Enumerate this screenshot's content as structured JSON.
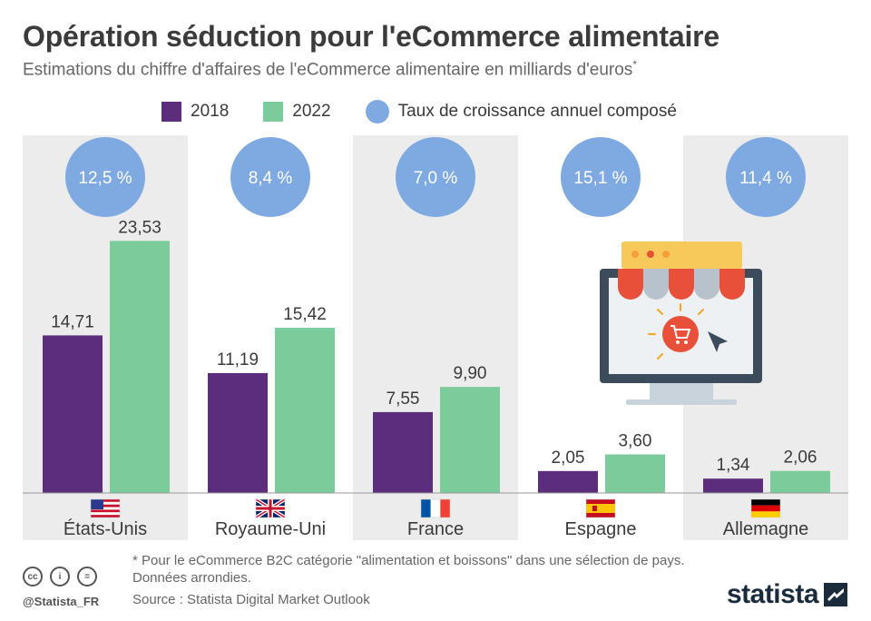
{
  "header": {
    "title": "Opération séduction pour l'eCommerce alimentaire",
    "subtitle": "Estimations du chiffre d'affaires de l'eCommerce alimentaire en milliards d'euros",
    "subtitle_mark": "*"
  },
  "legend": {
    "items": [
      {
        "label": "2018",
        "color": "#5c2d7d",
        "shape": "square"
      },
      {
        "label": "2022",
        "color": "#7ccb9b",
        "shape": "square"
      },
      {
        "label": "Taux de croissance annuel composé",
        "color": "#7fa9e1",
        "shape": "circle"
      }
    ]
  },
  "chart_data": {
    "type": "bar",
    "categories": [
      "États-Unis",
      "Royaume-Uni",
      "France",
      "Espagne",
      "Allemagne"
    ],
    "series": [
      {
        "name": "2018",
        "values": [
          14.71,
          11.19,
          7.55,
          2.05,
          1.34
        ],
        "labels": [
          "14,71",
          "11,19",
          "7,55",
          "2,05",
          "1,34"
        ],
        "color": "#5c2d7d"
      },
      {
        "name": "2022",
        "values": [
          23.53,
          15.42,
          9.9,
          3.6,
          2.06
        ],
        "labels": [
          "23,53",
          "15,42",
          "9,90",
          "3,60",
          "2,06"
        ],
        "color": "#7ccb9b"
      }
    ],
    "growth_rates": [
      12.5,
      8.4,
      7.0,
      15.1,
      11.4
    ],
    "growth_labels": [
      "12,5 %",
      "8,4 %",
      "7,0 %",
      "15,1 %",
      "11,4 %"
    ],
    "flags": [
      "us-flag-icon",
      "uk-flag-icon",
      "france-flag-icon",
      "spain-flag-icon",
      "germany-flag-icon"
    ],
    "ylim": [
      0,
      25
    ],
    "grid": false,
    "legend_position": "top"
  },
  "illustration": {
    "icon": "online-grocery-shop-icon"
  },
  "footer": {
    "footnote_line1": "* Pour le eCommerce B2C catégorie \"alimentation et boissons\" dans une sélection de pays.",
    "footnote_line2": "Données arrondies.",
    "source": "Source : Statista Digital Market Outlook",
    "handle": "@Statista_FR",
    "brand": "statista",
    "cc_icons": [
      "cc",
      "by",
      "nd"
    ],
    "cc_labels": [
      "cc",
      "i",
      "="
    ]
  }
}
